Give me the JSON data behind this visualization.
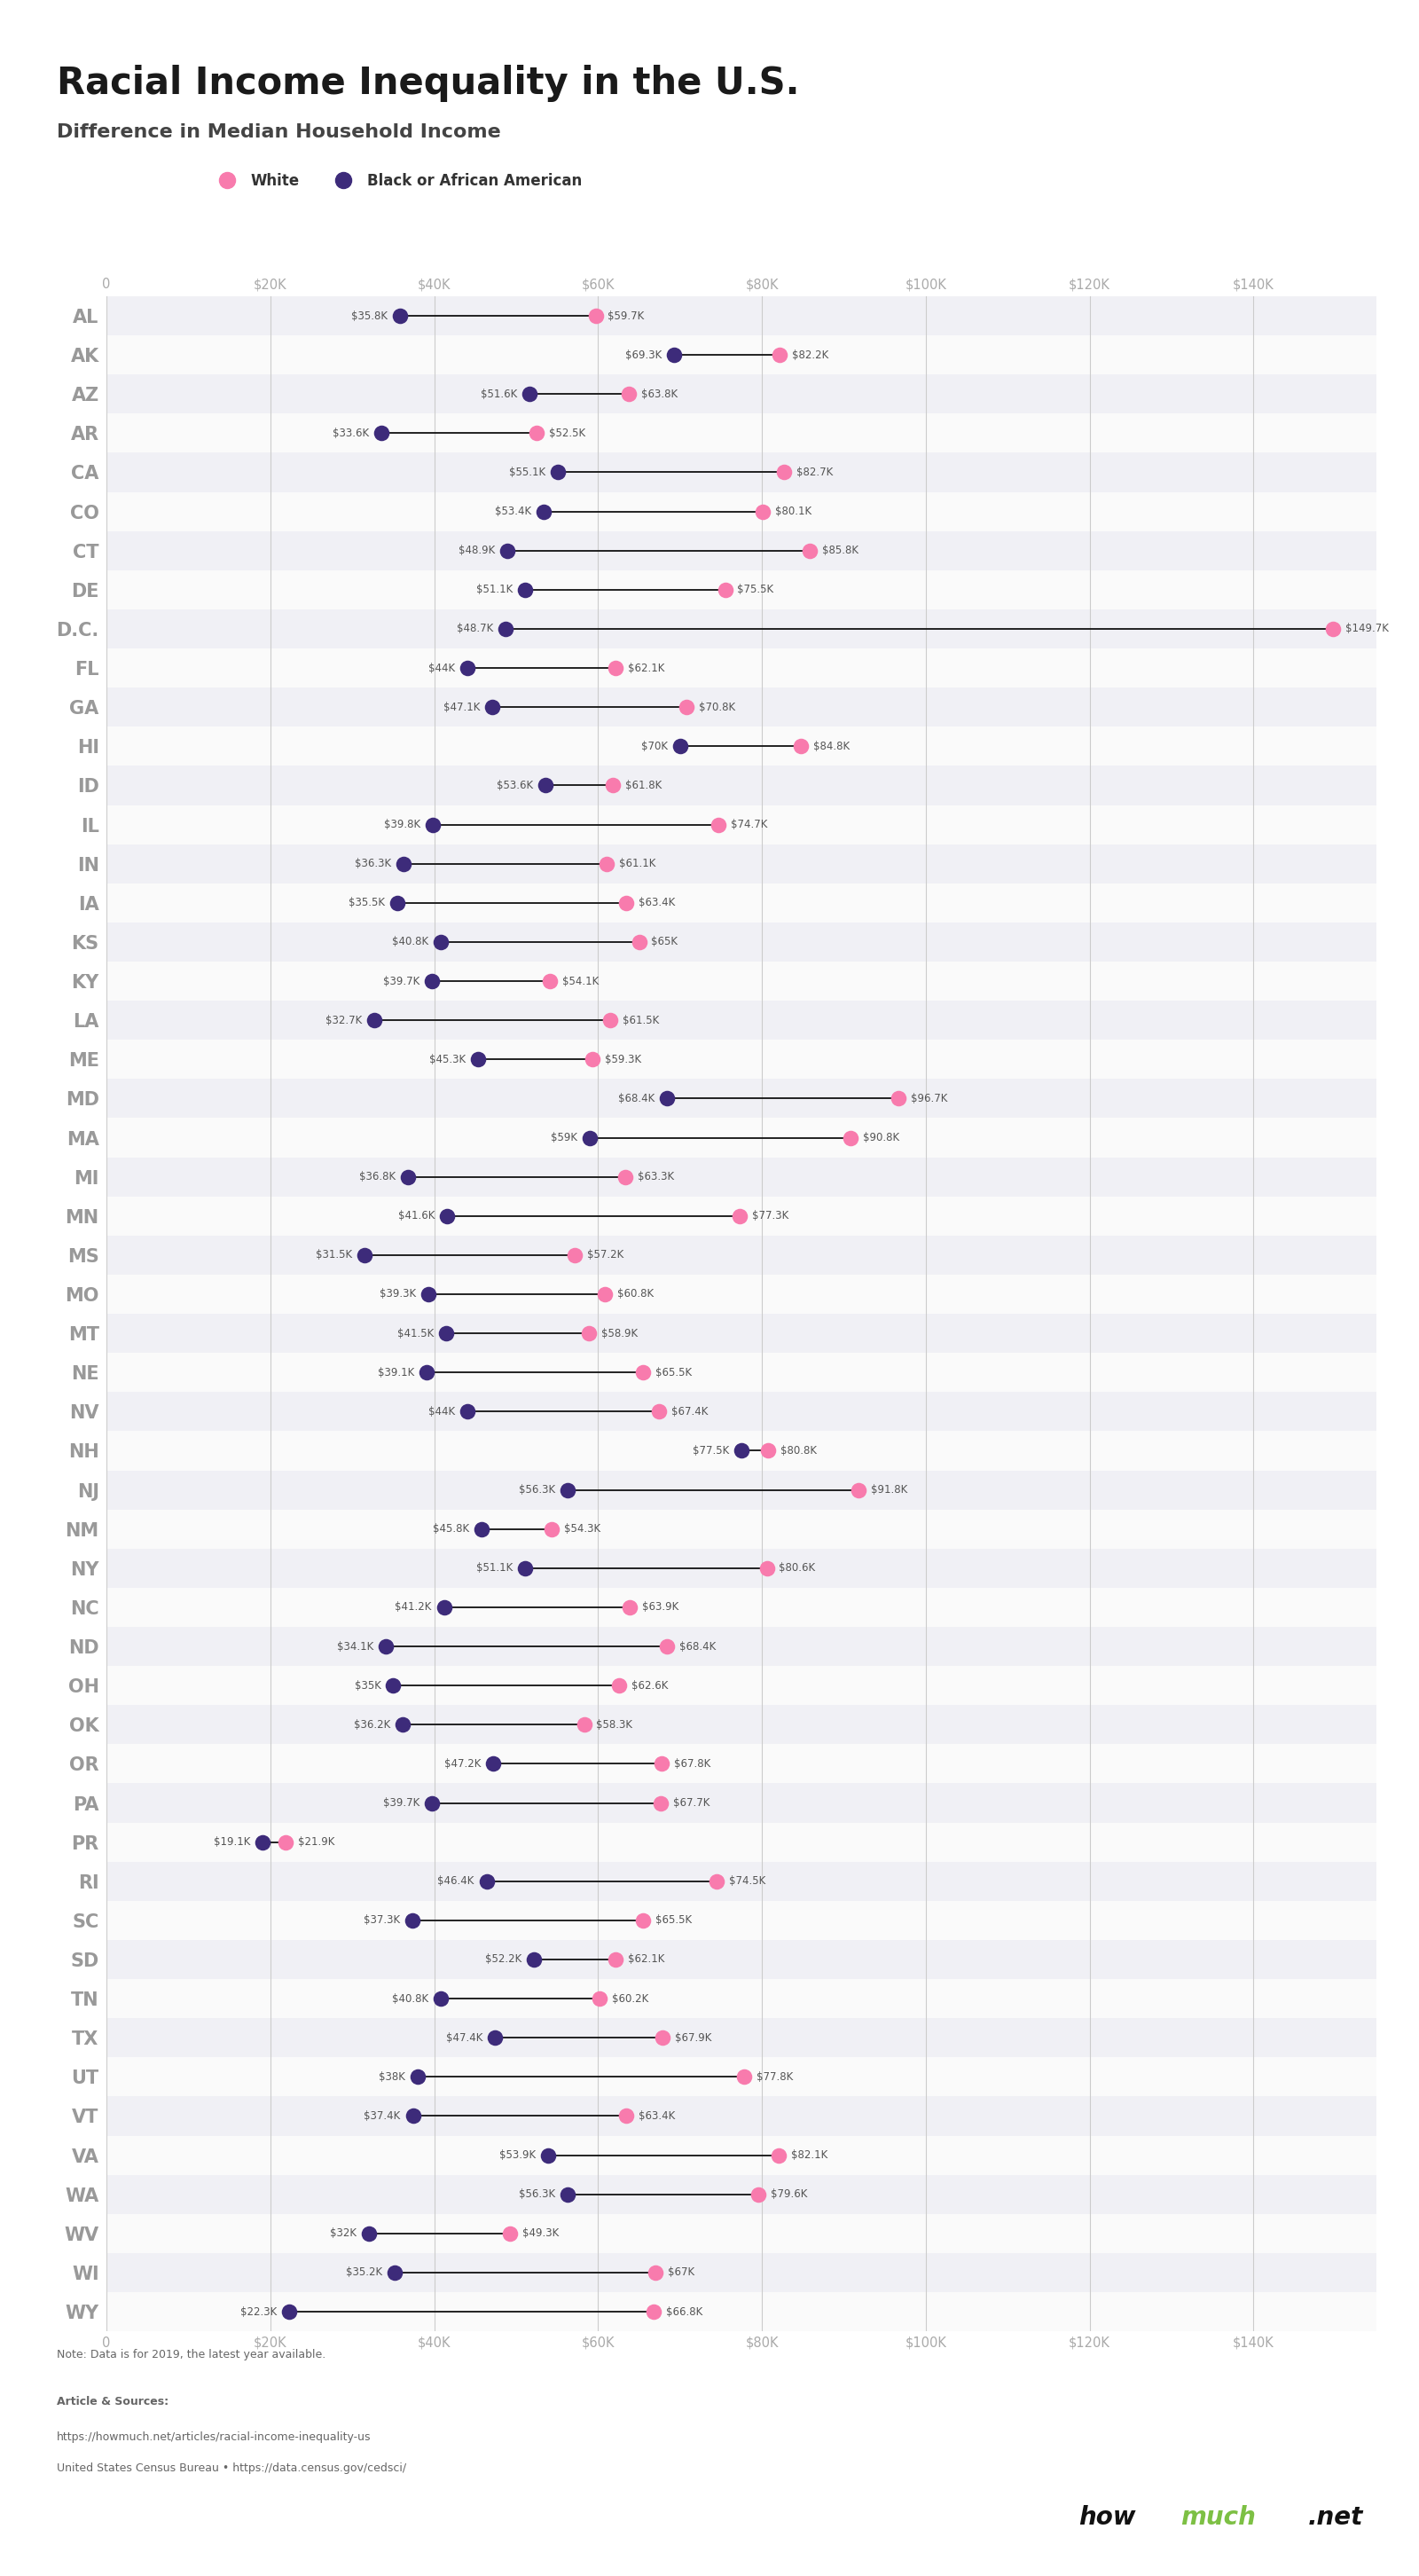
{
  "title": "Racial Income Inequality in the U.S.",
  "subtitle": "Difference in Median Household Income",
  "states": [
    "AL",
    "AK",
    "AZ",
    "AR",
    "CA",
    "CO",
    "CT",
    "DE",
    "D.C.",
    "FL",
    "GA",
    "HI",
    "ID",
    "IL",
    "IN",
    "IA",
    "KS",
    "KY",
    "LA",
    "ME",
    "MD",
    "MA",
    "MI",
    "MN",
    "MS",
    "MO",
    "MT",
    "NE",
    "NV",
    "NH",
    "NJ",
    "NM",
    "NY",
    "NC",
    "ND",
    "OH",
    "OK",
    "OR",
    "PA",
    "PR",
    "RI",
    "SC",
    "SD",
    "TN",
    "TX",
    "UT",
    "VT",
    "VA",
    "WA",
    "WV",
    "WI",
    "WY"
  ],
  "black_values": [
    35800,
    69300,
    51600,
    33600,
    55100,
    53400,
    48900,
    51100,
    48700,
    44000,
    47100,
    70000,
    53600,
    39800,
    36300,
    35500,
    40800,
    39700,
    32700,
    45300,
    68400,
    59000,
    36800,
    41600,
    31500,
    39300,
    41500,
    39100,
    44000,
    77500,
    56300,
    45800,
    51100,
    41200,
    34100,
    35000,
    36200,
    47200,
    39700,
    19100,
    46400,
    37300,
    52200,
    40800,
    47400,
    38000,
    37400,
    53900,
    56300,
    32000,
    35200,
    22300
  ],
  "white_values": [
    59700,
    82200,
    63800,
    52500,
    82700,
    80100,
    85800,
    75500,
    149700,
    62100,
    70800,
    84800,
    61800,
    74700,
    61100,
    63400,
    65000,
    54100,
    61500,
    59300,
    96700,
    90800,
    63300,
    77300,
    57200,
    60800,
    58900,
    65500,
    67400,
    80800,
    91800,
    54300,
    80600,
    63900,
    68400,
    62600,
    58300,
    67800,
    67700,
    21900,
    74500,
    65500,
    62100,
    60200,
    67900,
    77800,
    63400,
    82100,
    79600,
    49300,
    67000,
    66800
  ],
  "pink_color": "#F87BAD",
  "purple_color": "#3D2B7A",
  "background_color": "#FFFFFF",
  "row_alt_color": "#F0F0F5",
  "row_main_color": "#FAFAFA",
  "label_color": "#AAAAAA",
  "state_label_color": "#999999",
  "value_label_color": "#555555",
  "note_text": "Note: Data is for 2019, the latest year available.",
  "source_line1": "Article & Sources:",
  "source_line2": "https://howmuch.net/articles/racial-income-inequality-us",
  "source_line3": "United States Census Bureau • https://data.census.gov/cedsci/",
  "xlim": [
    0,
    155000
  ],
  "xticks": [
    0,
    20000,
    40000,
    60000,
    80000,
    100000,
    120000,
    140000
  ],
  "xtick_labels": [
    "0",
    "$20K",
    "$40K",
    "$60K",
    "$80K",
    "$100K",
    "$120K",
    "$140K"
  ]
}
